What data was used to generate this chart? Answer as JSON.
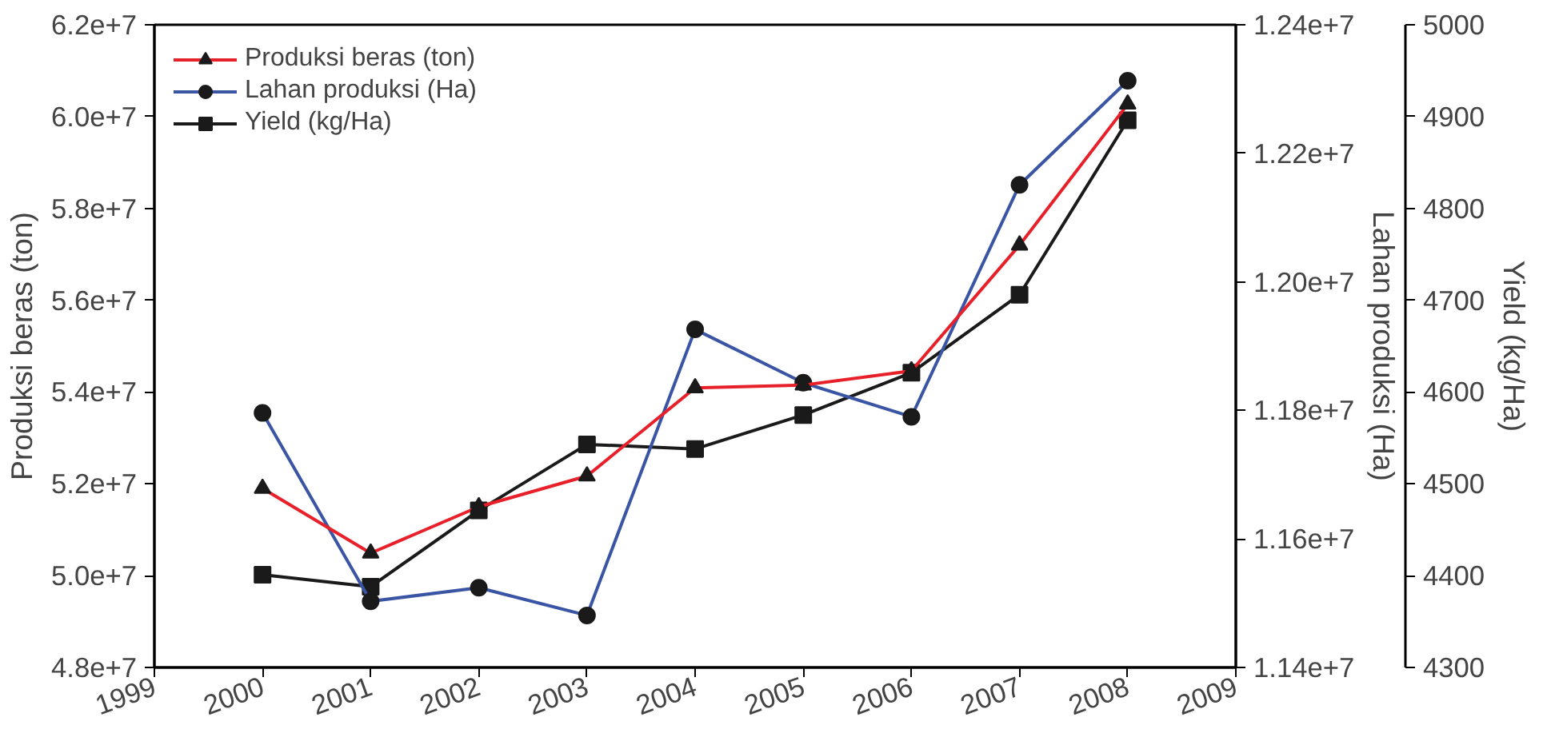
{
  "chart_data": {
    "type": "line",
    "xlabel": null,
    "ylabel": "Produksi beras (ton)",
    "y2label": "Lahan produksi (Ha)",
    "y3label": "Yield (kg/Ha)",
    "x": [
      2000,
      2001,
      2002,
      2003,
      2004,
      2005,
      2006,
      2007,
      2008
    ],
    "xlim": [
      1999,
      2009
    ],
    "xticks": [
      1999,
      2000,
      2001,
      2002,
      2003,
      2004,
      2005,
      2006,
      2007,
      2008,
      2009
    ],
    "ylim": [
      48000000,
      62000000
    ],
    "yticks": [
      {
        "value": 48000000,
        "label": "4.8e+7"
      },
      {
        "value": 50000000,
        "label": "5.0e+7"
      },
      {
        "value": 52000000,
        "label": "5.2e+7"
      },
      {
        "value": 54000000,
        "label": "5.4e+7"
      },
      {
        "value": 56000000,
        "label": "5.6e+7"
      },
      {
        "value": 58000000,
        "label": "5.8e+7"
      },
      {
        "value": 60000000,
        "label": "6.0e+7"
      },
      {
        "value": 62000000,
        "label": "6.2e+7"
      }
    ],
    "y2lim": [
      11400000,
      12400000
    ],
    "y2ticks": [
      {
        "value": 11400000,
        "label": "1.14e+7"
      },
      {
        "value": 11600000,
        "label": "1.16e+7"
      },
      {
        "value": 11800000,
        "label": "1.18e+7"
      },
      {
        "value": 12000000,
        "label": "1.20e+7"
      },
      {
        "value": 12200000,
        "label": "1.22e+7"
      },
      {
        "value": 12400000,
        "label": "1.24e+7"
      }
    ],
    "y3lim": [
      4300,
      5000
    ],
    "y3ticks": [
      4300,
      4400,
      4500,
      4600,
      4700,
      4800,
      4900,
      5000
    ],
    "series": [
      {
        "name": "Produksi beras (ton)",
        "color": "#e8202a",
        "marker": "triangle",
        "values": [
          51900000,
          50490000,
          51500000,
          52170000,
          54090000,
          54150000,
          54460000,
          57200000,
          60270000
        ]
      },
      {
        "name": "Lahan produksi (Ha)",
        "color": "#3a55a4",
        "marker": "circle",
        "axis": "y2",
        "values": [
          11796000,
          11503000,
          11524000,
          11481000,
          11926000,
          11843000,
          11790000,
          12151000,
          12313000
        ]
      },
      {
        "name": "Yield (kg/Ha)",
        "color": "#1a1a1a",
        "marker": "square",
        "axis": "y3",
        "values": [
          4401,
          4388,
          4471,
          4543,
          4538,
          4575,
          4621,
          4706,
          4896
        ]
      }
    ],
    "legend": "top left",
    "grid": false
  }
}
